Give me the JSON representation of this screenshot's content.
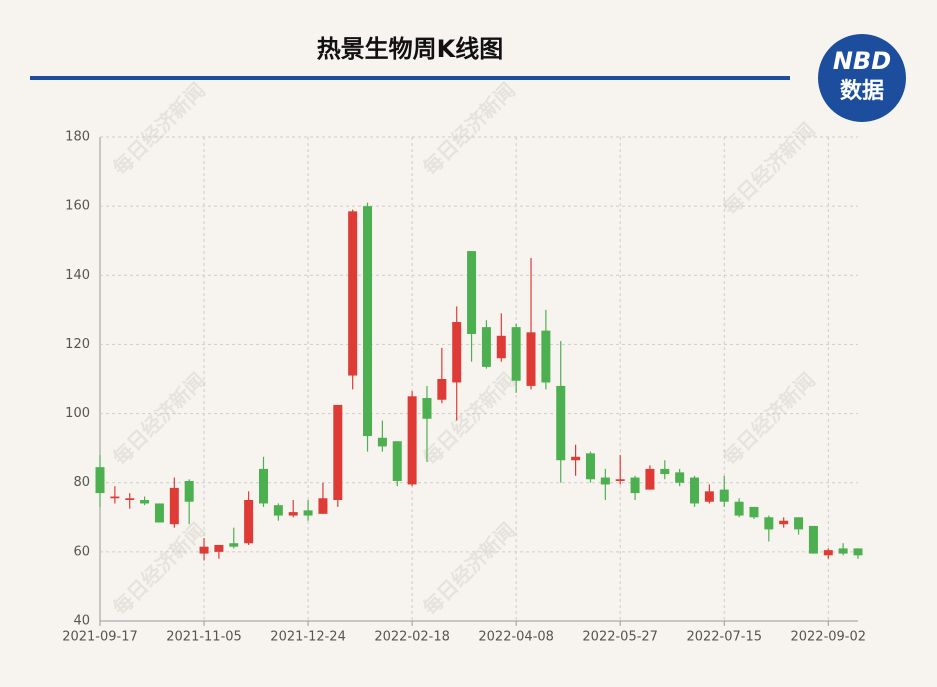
{
  "chart_data": {
    "type": "candlestick",
    "title": "热景生物周K线图",
    "logo_top": "NBD",
    "logo_bottom": "数据",
    "watermark": "每日经济新闻",
    "categories": [
      "2021-09-17",
      null,
      null,
      null,
      null,
      null,
      null,
      "2021-11-05",
      null,
      null,
      null,
      null,
      null,
      null,
      "2021-12-24",
      null,
      null,
      null,
      null,
      null,
      null,
      "2022-02-18",
      null,
      null,
      null,
      null,
      null,
      null,
      "2022-04-08",
      null,
      null,
      null,
      null,
      null,
      null,
      "2022-05-27",
      null,
      null,
      null,
      null,
      null,
      null,
      "2022-07-15",
      null,
      null,
      null,
      null,
      null,
      null,
      "2022-09-02",
      null,
      null
    ],
    "open": [
      84.5,
      75.5,
      75,
      75,
      74,
      68,
      80.5,
      59.5,
      60,
      62.5,
      62.5,
      84,
      73.5,
      70.5,
      72,
      71,
      75,
      111,
      160,
      93,
      92,
      79.5,
      104.5,
      104,
      109,
      147,
      125,
      116,
      125,
      108,
      124,
      108,
      86.5,
      88.5,
      81.5,
      80.5,
      81.5,
      78,
      84,
      83,
      81.5,
      74.5,
      78,
      74.5,
      73,
      70,
      68,
      70,
      67.5,
      59,
      61,
      61
    ],
    "high": [
      88,
      79,
      77,
      76,
      74,
      81.5,
      81,
      64,
      62,
      67,
      77.5,
      87.5,
      74,
      75,
      75,
      80,
      102.5,
      159,
      161,
      98,
      92,
      106.5,
      108,
      119,
      131,
      147,
      127,
      129,
      126,
      145,
      130,
      121,
      91,
      89,
      84,
      88,
      82,
      85,
      86.5,
      84,
      82,
      79.5,
      82,
      75.5,
      73,
      70.5,
      70,
      70,
      67.5,
      61,
      62.5,
      61
    ],
    "low": [
      73,
      74,
      72.5,
      73.5,
      68.5,
      67,
      68,
      57.5,
      58,
      61,
      62,
      73,
      69,
      70,
      69,
      71,
      73,
      107,
      89,
      89,
      79,
      79,
      86,
      103,
      98,
      115,
      113,
      115,
      106,
      107,
      107,
      80,
      82,
      80,
      75,
      79.5,
      75,
      78,
      81,
      79,
      73,
      74,
      73,
      70,
      69.5,
      63,
      67,
      65,
      59.5,
      58,
      59,
      58
    ],
    "close": [
      77,
      76,
      75.5,
      74,
      68.5,
      78.5,
      74.5,
      61.5,
      62,
      61.5,
      75,
      74,
      70.5,
      71.5,
      70.5,
      75.5,
      102.5,
      158.5,
      93.5,
      90.5,
      80.5,
      105,
      98.5,
      110,
      126.5,
      123,
      113.5,
      122.5,
      109.5,
      123.5,
      109,
      86.5,
      87.5,
      81,
      79.5,
      81,
      77,
      84,
      82.5,
      80,
      74,
      77.5,
      74.5,
      70.5,
      70,
      66.5,
      69,
      66.5,
      59.5,
      60.5,
      59.5,
      59
    ],
    "up_color": "#df3b36",
    "down_color": "#4caf50",
    "ylim": [
      40,
      180
    ],
    "yticks": [
      40,
      60,
      80,
      100,
      120,
      140,
      160,
      180
    ],
    "grid": true
  }
}
